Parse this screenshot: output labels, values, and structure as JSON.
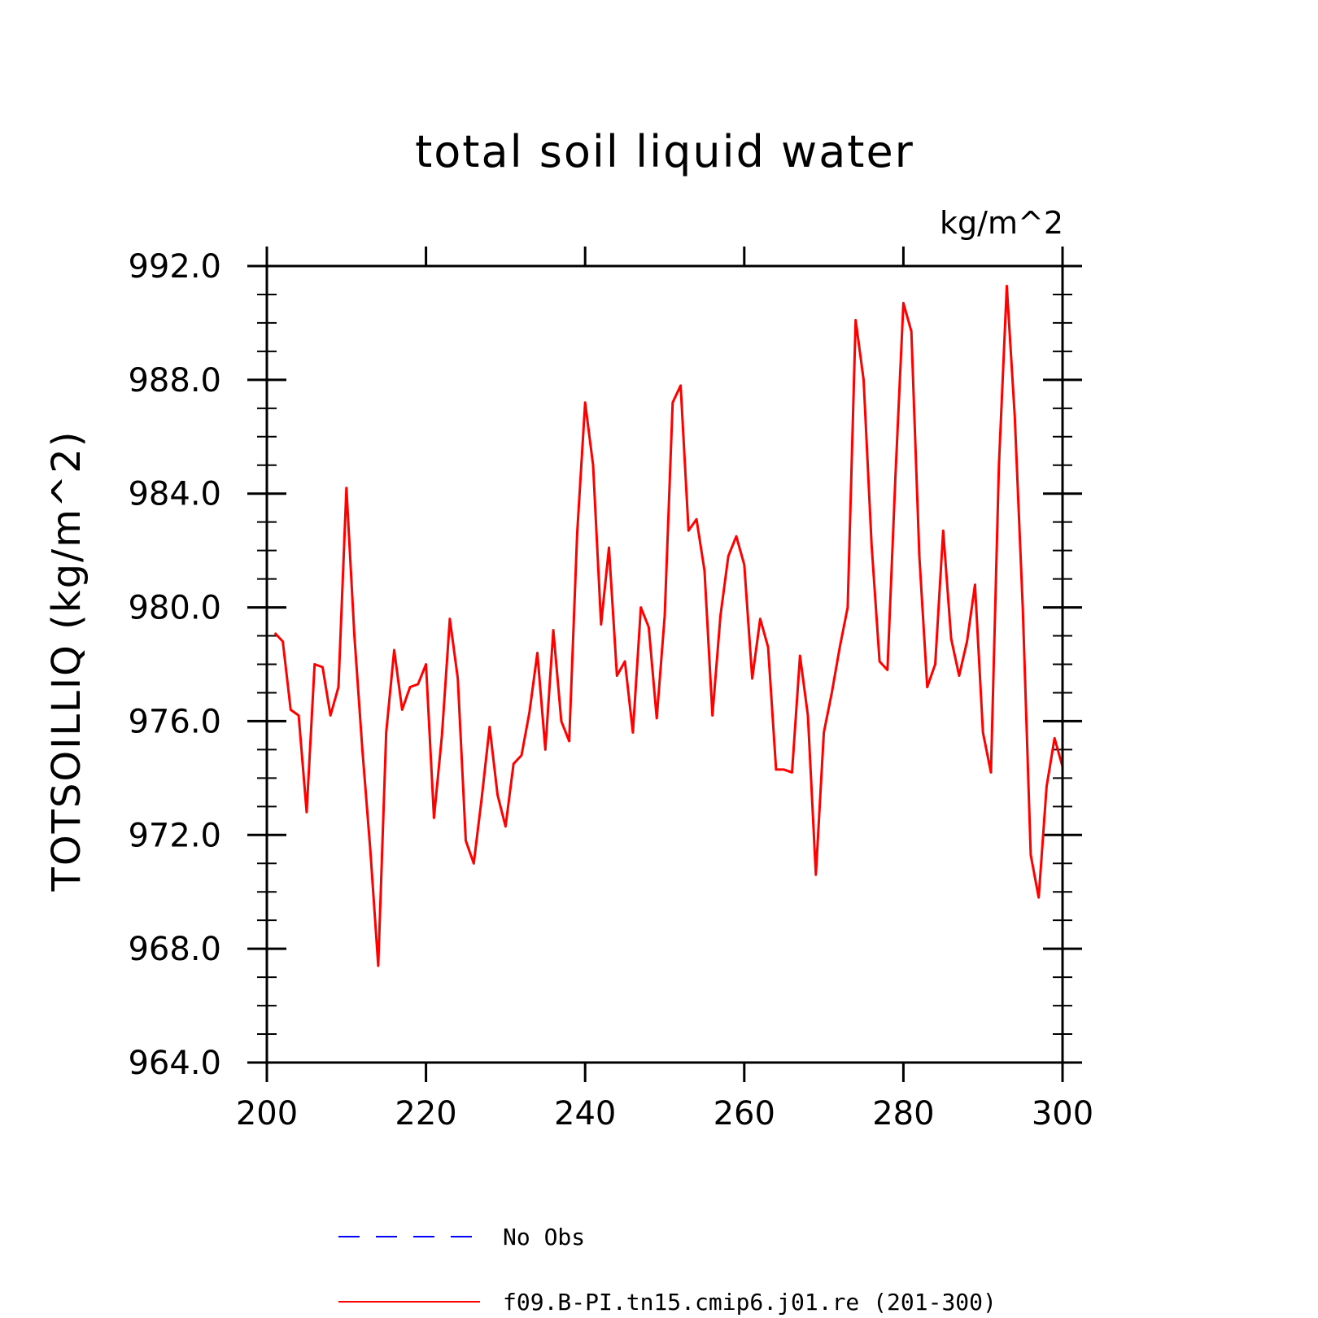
{
  "chart_data": {
    "type": "line",
    "title": "total soil liquid water",
    "units": "kg/m^2",
    "ylabel": "TOTSOILLIQ   (kg/m^2)",
    "xlabel": "",
    "xlim": [
      200,
      300
    ],
    "ylim": [
      964,
      992
    ],
    "xticks": [
      200,
      220,
      240,
      260,
      280,
      300
    ],
    "yticks": [
      964,
      968,
      972,
      976,
      980,
      984,
      988,
      992
    ],
    "xtick_labels": [
      "200",
      "220",
      "240",
      "260",
      "280",
      "300"
    ],
    "ytick_labels": [
      "964.0",
      "968.0",
      "972.0",
      "976.0",
      "980.0",
      "984.0",
      "988.0",
      "992.0"
    ],
    "grid": false,
    "legend_position": "bottom",
    "series": [
      {
        "name": "No Obs",
        "color": "#0000ff",
        "style": "dashed",
        "x": [],
        "y": []
      },
      {
        "name": "f09.B-PI.tn15.cmip6.j01.re (201-300)",
        "color": "#ff0000",
        "style": "solid",
        "x": [
          201,
          202,
          203,
          204,
          205,
          206,
          207,
          208,
          209,
          210,
          211,
          212,
          213,
          214,
          215,
          216,
          217,
          218,
          219,
          220,
          221,
          222,
          223,
          224,
          225,
          226,
          227,
          228,
          229,
          230,
          231,
          232,
          233,
          234,
          235,
          236,
          237,
          238,
          239,
          240,
          241,
          242,
          243,
          244,
          245,
          246,
          247,
          248,
          249,
          250,
          251,
          252,
          253,
          254,
          255,
          256,
          257,
          258,
          259,
          260,
          261,
          262,
          263,
          264,
          265,
          266,
          267,
          268,
          269,
          270,
          271,
          272,
          273,
          274,
          275,
          276,
          277,
          278,
          279,
          280,
          281,
          282,
          283,
          284,
          285,
          286,
          287,
          288,
          289,
          290,
          291,
          292,
          293,
          294,
          295,
          296,
          297,
          298,
          299,
          300
        ],
        "y": [
          979.1,
          978.8,
          976.4,
          976.2,
          972.8,
          978.0,
          977.9,
          976.2,
          977.2,
          984.2,
          979.0,
          975.0,
          971.5,
          967.4,
          975.6,
          978.5,
          976.4,
          977.2,
          977.3,
          978.0,
          972.6,
          975.5,
          979.6,
          977.5,
          971.8,
          971.0,
          973.3,
          975.8,
          973.4,
          972.3,
          974.5,
          974.8,
          976.3,
          978.4,
          975.0,
          979.2,
          976.0,
          975.3,
          982.6,
          987.2,
          985.0,
          979.4,
          982.1,
          977.6,
          978.1,
          975.6,
          980.0,
          979.3,
          976.1,
          979.7,
          987.2,
          987.8,
          982.7,
          983.1,
          981.3,
          976.2,
          979.7,
          981.8,
          982.5,
          981.5,
          977.5,
          979.6,
          978.6,
          974.3,
          974.3,
          974.2,
          978.3,
          976.2,
          970.6,
          975.6,
          977.0,
          978.6,
          980.0,
          990.1,
          988.0,
          982.2,
          978.1,
          977.8,
          984.6,
          990.7,
          989.7,
          981.8,
          977.2,
          978.0,
          982.7,
          978.9,
          977.6,
          978.8,
          980.8,
          975.6,
          974.2,
          985.0,
          991.3,
          986.7,
          980.0,
          971.3,
          969.8,
          973.7,
          975.4,
          974.4
        ]
      }
    ]
  }
}
